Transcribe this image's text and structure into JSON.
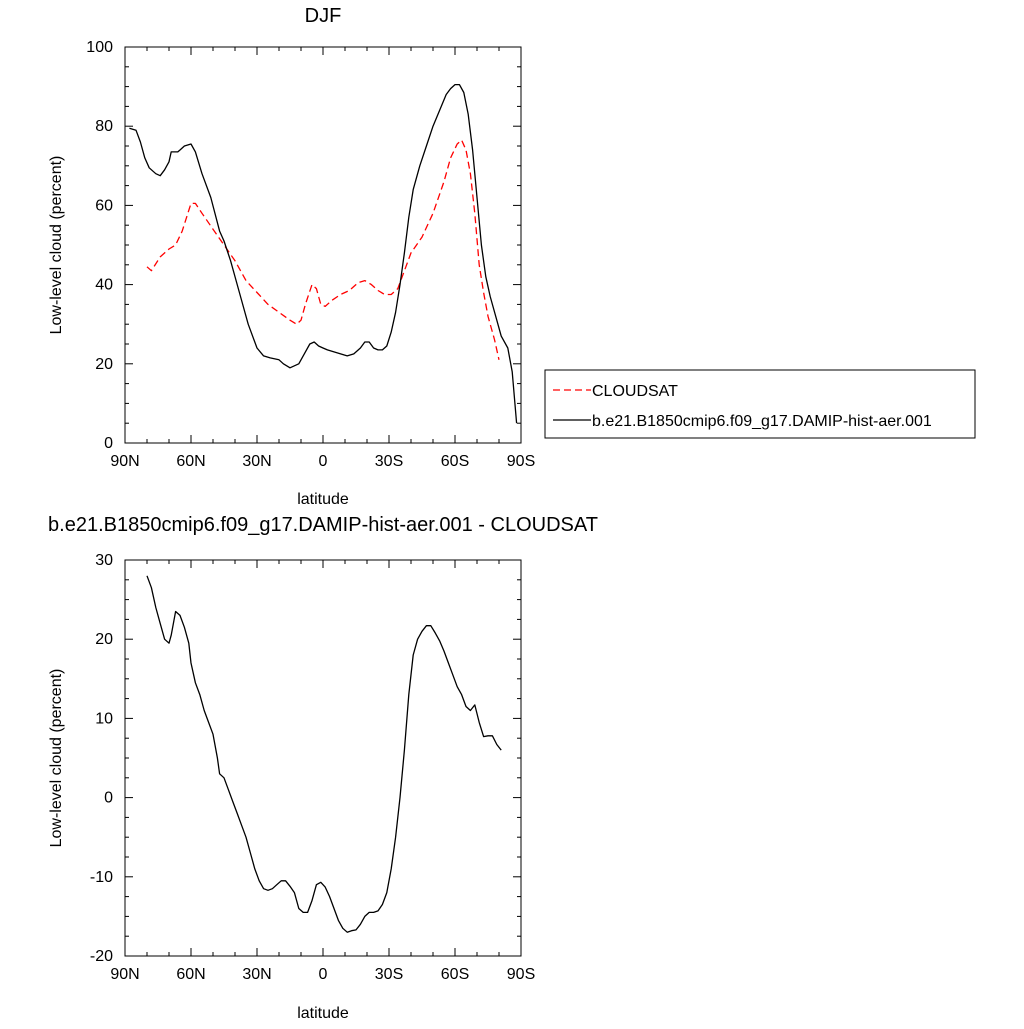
{
  "chart_data": [
    {
      "type": "line",
      "title": "DJF",
      "xlabel": "latitude",
      "ylabel": "Low-level cloud (percent)",
      "xlim": [
        90,
        -90
      ],
      "ylim": [
        0,
        100
      ],
      "x_ticks": [
        90,
        60,
        30,
        0,
        -30,
        -60,
        -90
      ],
      "x_tick_labels": [
        "90N",
        "60N",
        "30N",
        "0",
        "30S",
        "60S",
        "90S"
      ],
      "y_ticks": [
        0,
        20,
        40,
        60,
        80,
        100
      ],
      "y_tick_labels": [
        "0",
        "20",
        "40",
        "60",
        "80",
        "100"
      ],
      "legend": "right-outside",
      "series": [
        {
          "name": "CLOUDSAT",
          "color": "#ff0000",
          "dash": "dashed",
          "points": [
            [
              80,
              44.5
            ],
            [
              78,
              43.5
            ],
            [
              74,
              47
            ],
            [
              70,
              49
            ],
            [
              67,
              50
            ],
            [
              64,
              53.5
            ],
            [
              60,
              60.5
            ],
            [
              58,
              60.5
            ],
            [
              55,
              58
            ],
            [
              50,
              54
            ],
            [
              45,
              50
            ],
            [
              40,
              46
            ],
            [
              35,
              41
            ],
            [
              30,
              38
            ],
            [
              25,
              35
            ],
            [
              20,
              33
            ],
            [
              15,
              31
            ],
            [
              12,
              30
            ],
            [
              10,
              31
            ],
            [
              8,
              35
            ],
            [
              5,
              40
            ],
            [
              3,
              39
            ],
            [
              1,
              35
            ],
            [
              -1,
              34.5
            ],
            [
              -4,
              36
            ],
            [
              -8,
              37.5
            ],
            [
              -12,
              38.5
            ],
            [
              -16,
              40.5
            ],
            [
              -19,
              41
            ],
            [
              -22,
              40
            ],
            [
              -25,
              38.5
            ],
            [
              -28,
              37.5
            ],
            [
              -31,
              37.5
            ],
            [
              -34,
              39
            ],
            [
              -36,
              42
            ],
            [
              -38,
              45
            ],
            [
              -40,
              48
            ],
            [
              -45,
              52
            ],
            [
              -50,
              58
            ],
            [
              -55,
              66
            ],
            [
              -58,
              72
            ],
            [
              -61,
              75.5
            ],
            [
              -63,
              76.5
            ],
            [
              -65,
              74
            ],
            [
              -67,
              68
            ],
            [
              -69,
              58
            ],
            [
              -71,
              45
            ],
            [
              -73,
              38
            ],
            [
              -75,
              32
            ],
            [
              -78,
              26
            ],
            [
              -80,
              21
            ]
          ]
        },
        {
          "name": "b.e21.B1850cmip6.f09_g17.DAMIP-hist-aer.001",
          "color": "#000000",
          "dash": "solid",
          "points": [
            [
              88,
              79.5
            ],
            [
              85,
              79
            ],
            [
              83,
              76
            ],
            [
              81,
              72
            ],
            [
              79,
              69.5
            ],
            [
              76,
              68
            ],
            [
              74,
              67.5
            ],
            [
              72,
              69
            ],
            [
              70,
              71
            ],
            [
              69,
              73.5
            ],
            [
              66,
              73.5
            ],
            [
              65,
              74
            ],
            [
              63,
              75
            ],
            [
              60,
              75.5
            ],
            [
              58,
              73.5
            ],
            [
              55,
              68
            ],
            [
              51,
              62
            ],
            [
              47,
              53.5
            ],
            [
              45,
              51
            ],
            [
              42,
              46
            ],
            [
              38,
              38
            ],
            [
              34,
              30
            ],
            [
              30,
              24
            ],
            [
              27,
              22
            ],
            [
              24,
              21.5
            ],
            [
              20,
              21
            ],
            [
              18,
              20
            ],
            [
              15,
              19
            ],
            [
              13,
              19.5
            ],
            [
              11,
              20
            ],
            [
              8,
              23
            ],
            [
              6,
              25
            ],
            [
              4,
              25.5
            ],
            [
              2,
              24.5
            ],
            [
              0,
              24
            ],
            [
              -2,
              23.5
            ],
            [
              -5,
              23
            ],
            [
              -8,
              22.5
            ],
            [
              -11,
              22
            ],
            [
              -14,
              22.5
            ],
            [
              -17,
              24
            ],
            [
              -19,
              25.5
            ],
            [
              -21,
              25.5
            ],
            [
              -23,
              24
            ],
            [
              -25,
              23.5
            ],
            [
              -27,
              23.5
            ],
            [
              -29,
              24.5
            ],
            [
              -31,
              28
            ],
            [
              -33,
              33
            ],
            [
              -35,
              40
            ],
            [
              -37,
              48
            ],
            [
              -39,
              57
            ],
            [
              -41,
              64
            ],
            [
              -44,
              70
            ],
            [
              -47,
              75
            ],
            [
              -50,
              80
            ],
            [
              -53,
              84
            ],
            [
              -56,
              88
            ],
            [
              -58,
              89.5
            ],
            [
              -60,
              90.5
            ],
            [
              -62,
              90.5
            ],
            [
              -64,
              88.5
            ],
            [
              -66,
              83
            ],
            [
              -68,
              74
            ],
            [
              -70,
              62
            ],
            [
              -72,
              50
            ],
            [
              -74,
              42
            ],
            [
              -76,
              37
            ],
            [
              -79,
              31
            ],
            [
              -81,
              27
            ],
            [
              -84,
              24
            ],
            [
              -86,
              18
            ],
            [
              -88,
              5
            ]
          ]
        }
      ]
    },
    {
      "type": "line",
      "title": "b.e21.B1850cmip6.f09_g17.DAMIP-hist-aer.001 - CLOUDSAT",
      "xlabel": "latitude",
      "ylabel": "Low-level cloud (percent)",
      "xlim": [
        90,
        -90
      ],
      "ylim": [
        -20,
        30
      ],
      "x_ticks": [
        90,
        60,
        30,
        0,
        -30,
        -60,
        -90
      ],
      "x_tick_labels": [
        "90N",
        "60N",
        "30N",
        "0",
        "30S",
        "60S",
        "90S"
      ],
      "y_ticks": [
        -20,
        -10,
        0,
        10,
        20,
        30
      ],
      "y_tick_labels": [
        "-20",
        "-10",
        "0",
        "10",
        "20",
        "30"
      ],
      "series": [
        {
          "color": "#000000",
          "dash": "solid",
          "points": [
            [
              80,
              28
            ],
            [
              78,
              26.5
            ],
            [
              76,
              24
            ],
            [
              74,
              22
            ],
            [
              72,
              20
            ],
            [
              70,
              19.5
            ],
            [
              69,
              20.5
            ],
            [
              67,
              23.5
            ],
            [
              65,
              23
            ],
            [
              63,
              21.5
            ],
            [
              61,
              19.5
            ],
            [
              60,
              17
            ],
            [
              58,
              14.5
            ],
            [
              56,
              13
            ],
            [
              54,
              11
            ],
            [
              52,
              9.5
            ],
            [
              50,
              8
            ],
            [
              48,
              5
            ],
            [
              47,
              3
            ],
            [
              45,
              2.5
            ],
            [
              43,
              1
            ],
            [
              41,
              -0.5
            ],
            [
              39,
              -2
            ],
            [
              37,
              -3.5
            ],
            [
              35,
              -5
            ],
            [
              33,
              -7
            ],
            [
              31,
              -9
            ],
            [
              29,
              -10.5
            ],
            [
              27,
              -11.5
            ],
            [
              25,
              -11.7
            ],
            [
              23,
              -11.5
            ],
            [
              21,
              -11
            ],
            [
              19,
              -10.5
            ],
            [
              17,
              -10.5
            ],
            [
              15,
              -11.2
            ],
            [
              13,
              -12
            ],
            [
              11,
              -14
            ],
            [
              9,
              -14.5
            ],
            [
              7,
              -14.5
            ],
            [
              5,
              -13
            ],
            [
              3,
              -11
            ],
            [
              1,
              -10.7
            ],
            [
              -1,
              -11.3
            ],
            [
              -3,
              -12.5
            ],
            [
              -5,
              -14
            ],
            [
              -7,
              -15.5
            ],
            [
              -9,
              -16.5
            ],
            [
              -11,
              -17
            ],
            [
              -13,
              -16.8
            ],
            [
              -15,
              -16.7
            ],
            [
              -17,
              -16
            ],
            [
              -19,
              -15
            ],
            [
              -21,
              -14.5
            ],
            [
              -23,
              -14.5
            ],
            [
              -25,
              -14.3
            ],
            [
              -27,
              -13.5
            ],
            [
              -29,
              -12
            ],
            [
              -31,
              -9
            ],
            [
              -33,
              -5
            ],
            [
              -35,
              0
            ],
            [
              -37,
              6
            ],
            [
              -39,
              13
            ],
            [
              -41,
              18
            ],
            [
              -43,
              20
            ],
            [
              -45,
              21
            ],
            [
              -47,
              21.7
            ],
            [
              -49,
              21.7
            ],
            [
              -51,
              20.8
            ],
            [
              -53,
              19.8
            ],
            [
              -55,
              18.5
            ],
            [
              -57,
              17
            ],
            [
              -59,
              15.5
            ],
            [
              -61,
              14
            ],
            [
              -63,
              13
            ],
            [
              -65,
              11.5
            ],
            [
              -67,
              11
            ],
            [
              -69,
              11.7
            ],
            [
              -71,
              9.5
            ],
            [
              -73,
              7.7
            ],
            [
              -75,
              7.8
            ],
            [
              -77,
              7.8
            ],
            [
              -79,
              6.7
            ],
            [
              -81,
              6
            ]
          ]
        }
      ]
    }
  ]
}
